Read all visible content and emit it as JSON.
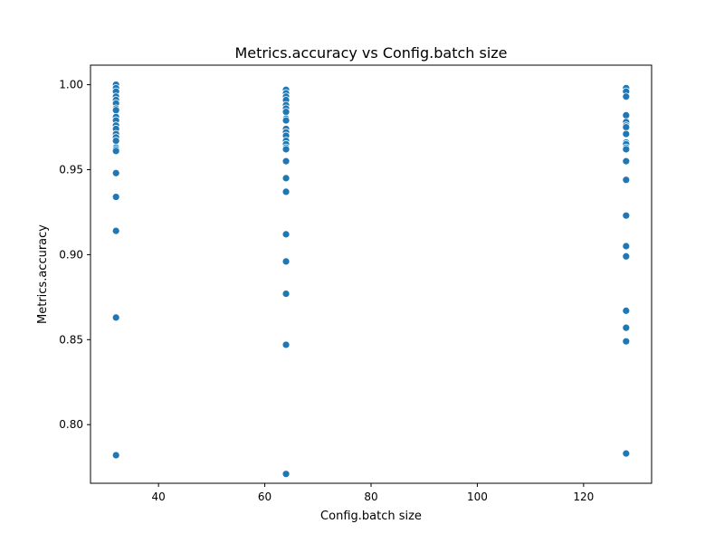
{
  "chart_data": {
    "type": "scatter",
    "title": "Metrics.accuracy vs Config.batch size",
    "xlabel": "Config.batch size",
    "ylabel": "Metrics.accuracy",
    "xlim": [
      27.2,
      132.8
    ],
    "ylim": [
      0.7655,
      1.0115
    ],
    "xticks": [
      40,
      60,
      80,
      100,
      120
    ],
    "yticks": [
      0.8,
      0.85,
      0.9,
      0.95,
      1.0
    ],
    "xtick_labels": [
      "40",
      "60",
      "80",
      "100",
      "120"
    ],
    "ytick_labels": [
      "0.80",
      "0.85",
      "0.90",
      "0.95",
      "1.00"
    ],
    "grid": false,
    "marker_color": "#1f77b4",
    "series": [
      {
        "points": [
          [
            32,
            1.0
          ],
          [
            32,
            0.998
          ],
          [
            32,
            0.996
          ],
          [
            32,
            0.993
          ],
          [
            32,
            0.991
          ],
          [
            32,
            0.989
          ],
          [
            32,
            0.986
          ],
          [
            32,
            0.985
          ],
          [
            32,
            0.981
          ],
          [
            32,
            0.979
          ],
          [
            32,
            0.976
          ],
          [
            32,
            0.974
          ],
          [
            32,
            0.971
          ],
          [
            32,
            0.969
          ],
          [
            32,
            0.967
          ],
          [
            32,
            0.963
          ],
          [
            32,
            0.962
          ],
          [
            32,
            0.961
          ],
          [
            32,
            0.948
          ],
          [
            32,
            0.934
          ],
          [
            32,
            0.914
          ],
          [
            32,
            0.863
          ],
          [
            32,
            0.782
          ],
          [
            64,
            0.997
          ],
          [
            64,
            0.995
          ],
          [
            64,
            0.993
          ],
          [
            64,
            0.991
          ],
          [
            64,
            0.988
          ],
          [
            64,
            0.986
          ],
          [
            64,
            0.984
          ],
          [
            64,
            0.98
          ],
          [
            64,
            0.979
          ],
          [
            64,
            0.974
          ],
          [
            64,
            0.972
          ],
          [
            64,
            0.97
          ],
          [
            64,
            0.967
          ],
          [
            64,
            0.965
          ],
          [
            64,
            0.963
          ],
          [
            64,
            0.962
          ],
          [
            64,
            0.955
          ],
          [
            64,
            0.945
          ],
          [
            64,
            0.937
          ],
          [
            64,
            0.912
          ],
          [
            64,
            0.896
          ],
          [
            64,
            0.877
          ],
          [
            64,
            0.847
          ],
          [
            64,
            0.771
          ],
          [
            128,
            0.998
          ],
          [
            128,
            0.996
          ],
          [
            128,
            0.993
          ],
          [
            128,
            0.982
          ],
          [
            128,
            0.978
          ],
          [
            128,
            0.976
          ],
          [
            128,
            0.975
          ],
          [
            128,
            0.971
          ],
          [
            128,
            0.966
          ],
          [
            128,
            0.965
          ],
          [
            128,
            0.963
          ],
          [
            128,
            0.962
          ],
          [
            128,
            0.955
          ],
          [
            128,
            0.944
          ],
          [
            128,
            0.923
          ],
          [
            128,
            0.905
          ],
          [
            128,
            0.899
          ],
          [
            128,
            0.867
          ],
          [
            128,
            0.857
          ],
          [
            128,
            0.849
          ],
          [
            128,
            0.783
          ]
        ]
      }
    ]
  }
}
